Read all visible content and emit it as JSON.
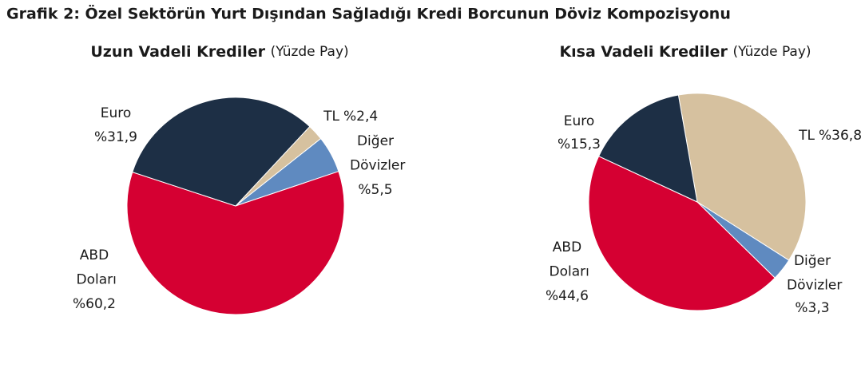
{
  "title": "Grafik 2: Özel Sektörün Yurt Dışından Sağladığı Kredi Borcunun Döviz Kompozisyonu",
  "chart_data": [
    {
      "type": "pie",
      "title": "Uzun Vadeli Krediler",
      "subtitle": "(Yüzde Pay)",
      "categories": [
        "TL",
        "Diğer Dövizler",
        "ABD Doları",
        "Euro"
      ],
      "values": [
        2.4,
        5.5,
        60.2,
        31.9
      ],
      "value_labels": [
        "%2,4",
        "%5,5",
        "%60,2",
        "%31,9"
      ],
      "colors": [
        "#d6c19f",
        "#5f8ac0",
        "#d50032",
        "#1d2f45"
      ]
    },
    {
      "type": "pie",
      "title": "Kısa Vadeli Krediler",
      "subtitle": "(Yüzde Pay)",
      "categories": [
        "TL",
        "Diğer Dövizler",
        "ABD Doları",
        "Euro"
      ],
      "values": [
        36.8,
        3.3,
        44.6,
        15.3
      ],
      "value_labels": [
        "%36,8",
        "%3,3",
        "%44,6",
        "%15,3"
      ],
      "colors": [
        "#d6c19f",
        "#5f8ac0",
        "#d50032",
        "#1d2f45"
      ]
    }
  ]
}
